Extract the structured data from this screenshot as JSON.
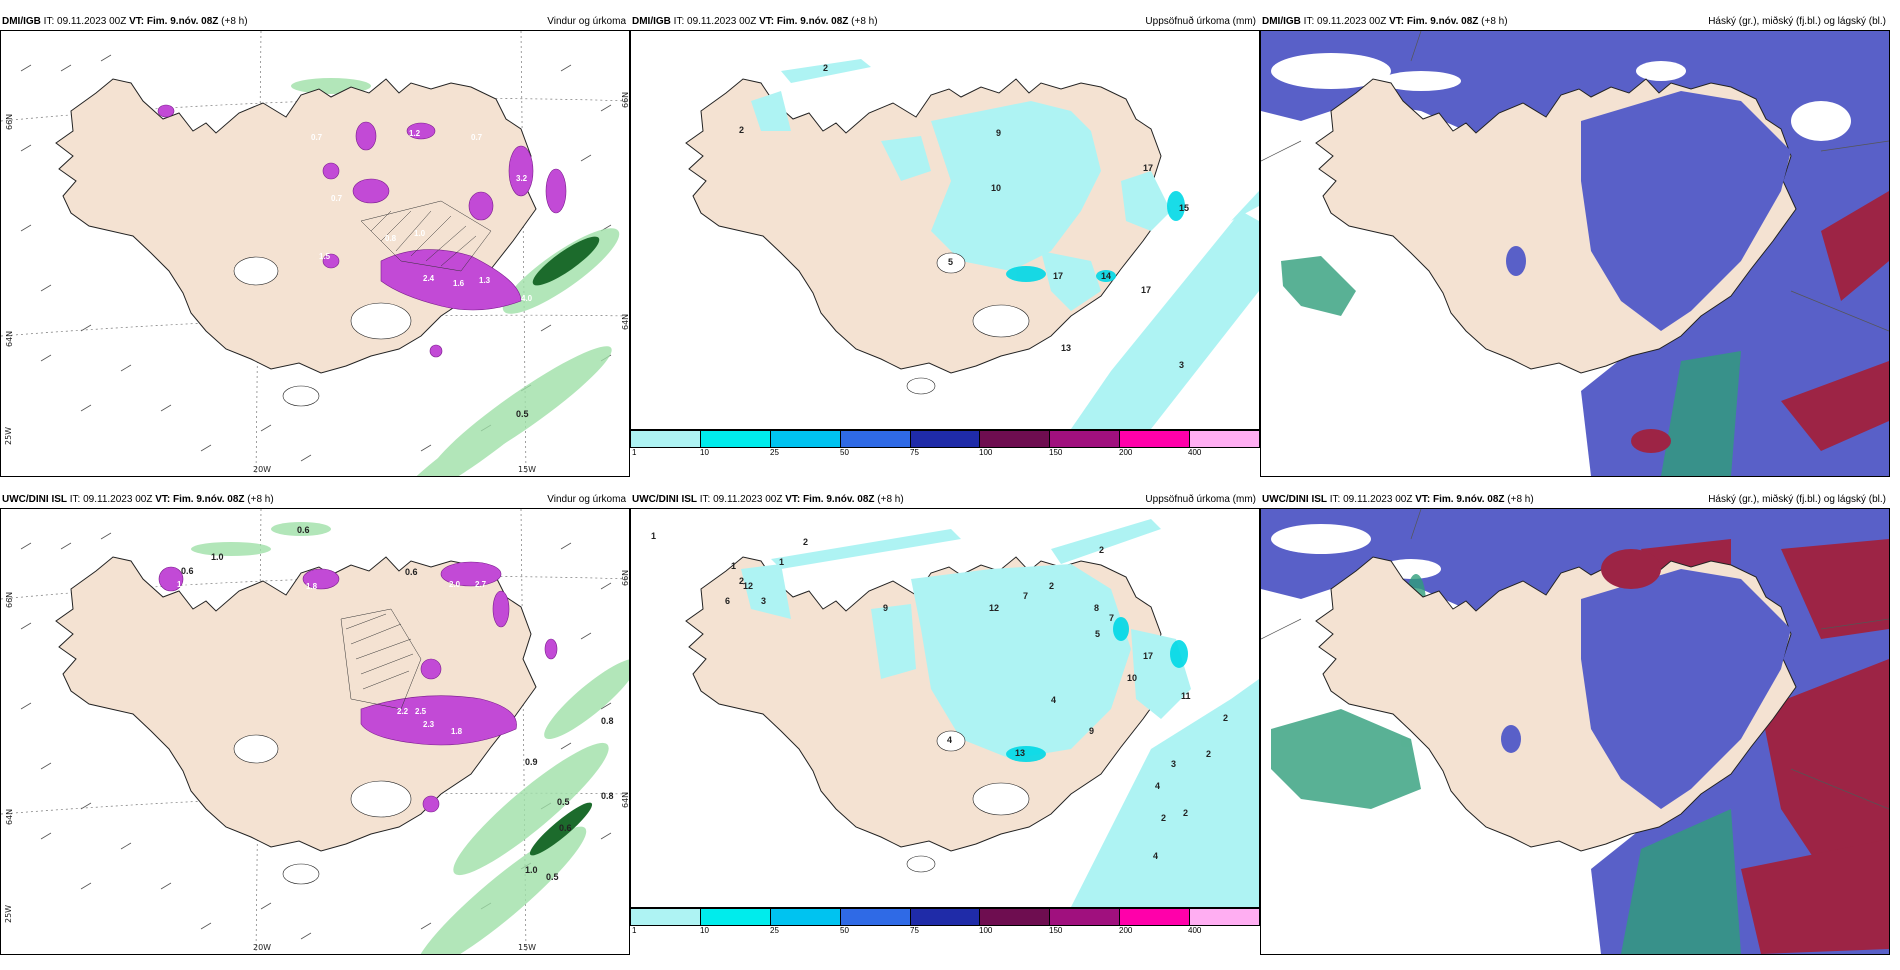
{
  "colors": {
    "land": "#f4e2d2",
    "sea": "#ffffff",
    "precip_light": "#bfeee0",
    "precip_green": "#8fd99a",
    "precip_magenta": "#c24ad6",
    "accum_cyan": "#aef3f3",
    "cloud_high": "#5960c8",
    "cloud_mid": "#2f9e7a",
    "cloud_low": "#9d2445"
  },
  "colorbar": {
    "ticks": [
      "1",
      "10",
      "25",
      "50",
      "75",
      "100",
      "150",
      "200",
      "400"
    ],
    "swatches": [
      "#aef3f3",
      "#00ecec",
      "#00c3f0",
      "#2f6ae6",
      "#1f2ba8",
      "#6e0d50",
      "#a0107e",
      "#ff00aa",
      "#ffaef2"
    ]
  },
  "panels": [
    {
      "source": "DMI/IGB",
      "it": "IT: 09.11.2023 00Z",
      "vt_label": "VT:",
      "vt": "Fim. 9.nóv. 08Z",
      "lead": "(+8 h)",
      "title": "Vindur og úrkoma",
      "axis": {
        "lat_top": "66N",
        "lat_bottom": "64N",
        "lon_left": "20W",
        "lon_right": "15W",
        "sw": "25W",
        "lat_right_top": "66N",
        "lat_right_bottom": "64N"
      },
      "values": [
        "0.7",
        "0.7",
        "1.2",
        "3.2",
        "2.4",
        "1.6",
        "1.3",
        "4.0",
        "0.5",
        "0.8",
        "1.0",
        "0.7",
        "1.5"
      ]
    },
    {
      "source": "DMI/IGB",
      "it": "IT: 09.11.2023 00Z",
      "vt_label": "VT:",
      "vt": "Fim. 9.nóv. 08Z",
      "lead": "(+8 h)",
      "title": "Uppsöfnuð úrkoma (mm)",
      "values": [
        "2",
        "2",
        "9",
        "10",
        "17",
        "15",
        "5",
        "17",
        "14",
        "17",
        "3",
        "13"
      ]
    },
    {
      "source": "DMI/IGB",
      "it": "IT: 09.11.2023 00Z",
      "vt_label": "VT:",
      "vt": "Fim. 9.nóv. 08Z",
      "lead": "(+8 h)",
      "title": "Háský (gr.), miðský (fj.bl.) og lágský (bl.)"
    },
    {
      "source": "UWC/DINI ISL",
      "it": "IT: 09.11.2023 00Z",
      "vt_label": "VT:",
      "vt": "Fim. 9.nóv. 08Z",
      "lead": "(+8 h)",
      "title": "Vindur og úrkoma",
      "axis": {
        "lat_top": "66N",
        "lat_bottom": "64N",
        "lon_left": "20W",
        "lon_right": "15W",
        "sw": "25W",
        "lat_right_top": "66N",
        "lat_right_bottom": "64N"
      },
      "values": [
        "0.6",
        "1.0",
        "0.6",
        "1.6",
        "0.6",
        "2.0",
        "2.7",
        "1.8",
        "2.2",
        "2.5",
        "2.3",
        "1.8",
        "0.8",
        "0.9",
        "0.8",
        "0.5",
        "0.6",
        "1.0",
        "0.5",
        "1.5"
      ]
    },
    {
      "source": "UWC/DINI ISL",
      "it": "IT: 09.11.2023 00Z",
      "vt_label": "VT:",
      "vt": "Fim. 9.nóv. 08Z",
      "lead": "(+8 h)",
      "title": "Uppsöfnuð úrkoma (mm)",
      "values": [
        "1",
        "2",
        "1",
        "1",
        "2",
        "2",
        "6",
        "12",
        "3",
        "9",
        "12",
        "7",
        "2",
        "8",
        "5",
        "7",
        "17",
        "10",
        "4",
        "13",
        "4",
        "9",
        "11",
        "2",
        "3",
        "2",
        "4",
        "2",
        "2",
        "4"
      ]
    },
    {
      "source": "UWC/DINI ISL",
      "it": "IT: 09.11.2023 00Z",
      "vt_label": "VT:",
      "vt": "Fim. 9.nóv. 08Z",
      "lead": "(+8 h)",
      "title": "Háský (gr.), miðský (fj.bl.) og lágský (bl.)"
    }
  ]
}
